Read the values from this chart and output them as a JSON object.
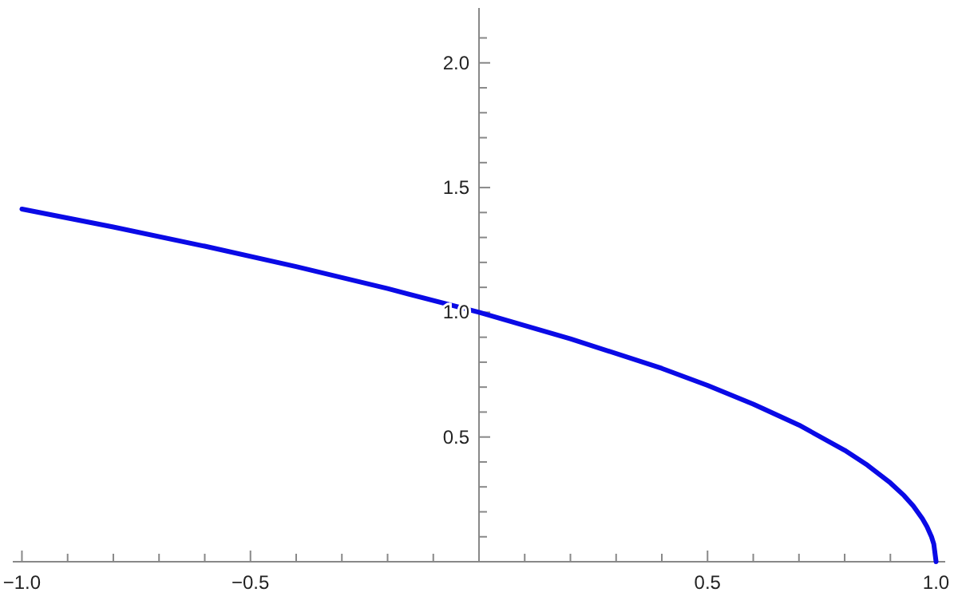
{
  "chart_data": {
    "type": "line",
    "x": [
      -1,
      -0.8,
      -0.6,
      -0.4,
      -0.2,
      0,
      0.2,
      0.4,
      0.5,
      0.6,
      0.7,
      0.8,
      0.85,
      0.9,
      0.93,
      0.95,
      0.97,
      0.98,
      0.99,
      0.995,
      1
    ],
    "series": [
      {
        "color": "#0a0ae6",
        "values": [
          1.414,
          1.342,
          1.265,
          1.183,
          1.095,
          1,
          0.894,
          0.775,
          0.707,
          0.632,
          0.548,
          0.447,
          0.387,
          0.316,
          0.265,
          0.224,
          0.173,
          0.141,
          0.1,
          0.071,
          0
        ]
      }
    ],
    "xlim": [
      -1.02,
      1.02
    ],
    "ylim": [
      0,
      2.22
    ],
    "xticks": [
      {
        "value": -1,
        "label": "−1.0"
      },
      {
        "value": -0.9,
        "label": null
      },
      {
        "value": -0.8,
        "label": null
      },
      {
        "value": -0.7,
        "label": null
      },
      {
        "value": -0.6,
        "label": null
      },
      {
        "value": -0.5,
        "label": "−0.5"
      },
      {
        "value": -0.4,
        "label": null
      },
      {
        "value": -0.3,
        "label": null
      },
      {
        "value": -0.2,
        "label": null
      },
      {
        "value": -0.1,
        "label": null
      },
      {
        "value": 0.1,
        "label": null
      },
      {
        "value": 0.2,
        "label": null
      },
      {
        "value": 0.3,
        "label": null
      },
      {
        "value": 0.4,
        "label": null
      },
      {
        "value": 0.5,
        "label": "0.5"
      },
      {
        "value": 0.6,
        "label": null
      },
      {
        "value": 0.7,
        "label": null
      },
      {
        "value": 0.8,
        "label": null
      },
      {
        "value": 0.9,
        "label": null
      },
      {
        "value": 1,
        "label": "1.0"
      }
    ],
    "yticks": [
      {
        "value": 0.1,
        "label": null
      },
      {
        "value": 0.2,
        "label": null
      },
      {
        "value": 0.3,
        "label": null
      },
      {
        "value": 0.4,
        "label": null
      },
      {
        "value": 0.5,
        "label": "0.5"
      },
      {
        "value": 0.6,
        "label": null
      },
      {
        "value": 0.7,
        "label": null
      },
      {
        "value": 0.8,
        "label": null
      },
      {
        "value": 0.9,
        "label": null
      },
      {
        "value": 1,
        "label": "1.0"
      },
      {
        "value": 1.1,
        "label": null
      },
      {
        "value": 1.2,
        "label": null
      },
      {
        "value": 1.3,
        "label": null
      },
      {
        "value": 1.4,
        "label": null
      },
      {
        "value": 1.5,
        "label": "1.5"
      },
      {
        "value": 1.6,
        "label": null
      },
      {
        "value": 1.7,
        "label": null
      },
      {
        "value": 1.8,
        "label": null
      },
      {
        "value": 1.9,
        "label": null
      },
      {
        "value": 2,
        "label": "2.0"
      },
      {
        "value": 2.1,
        "label": null
      }
    ],
    "grid": false,
    "marker": "none",
    "line_style": "solid"
  }
}
